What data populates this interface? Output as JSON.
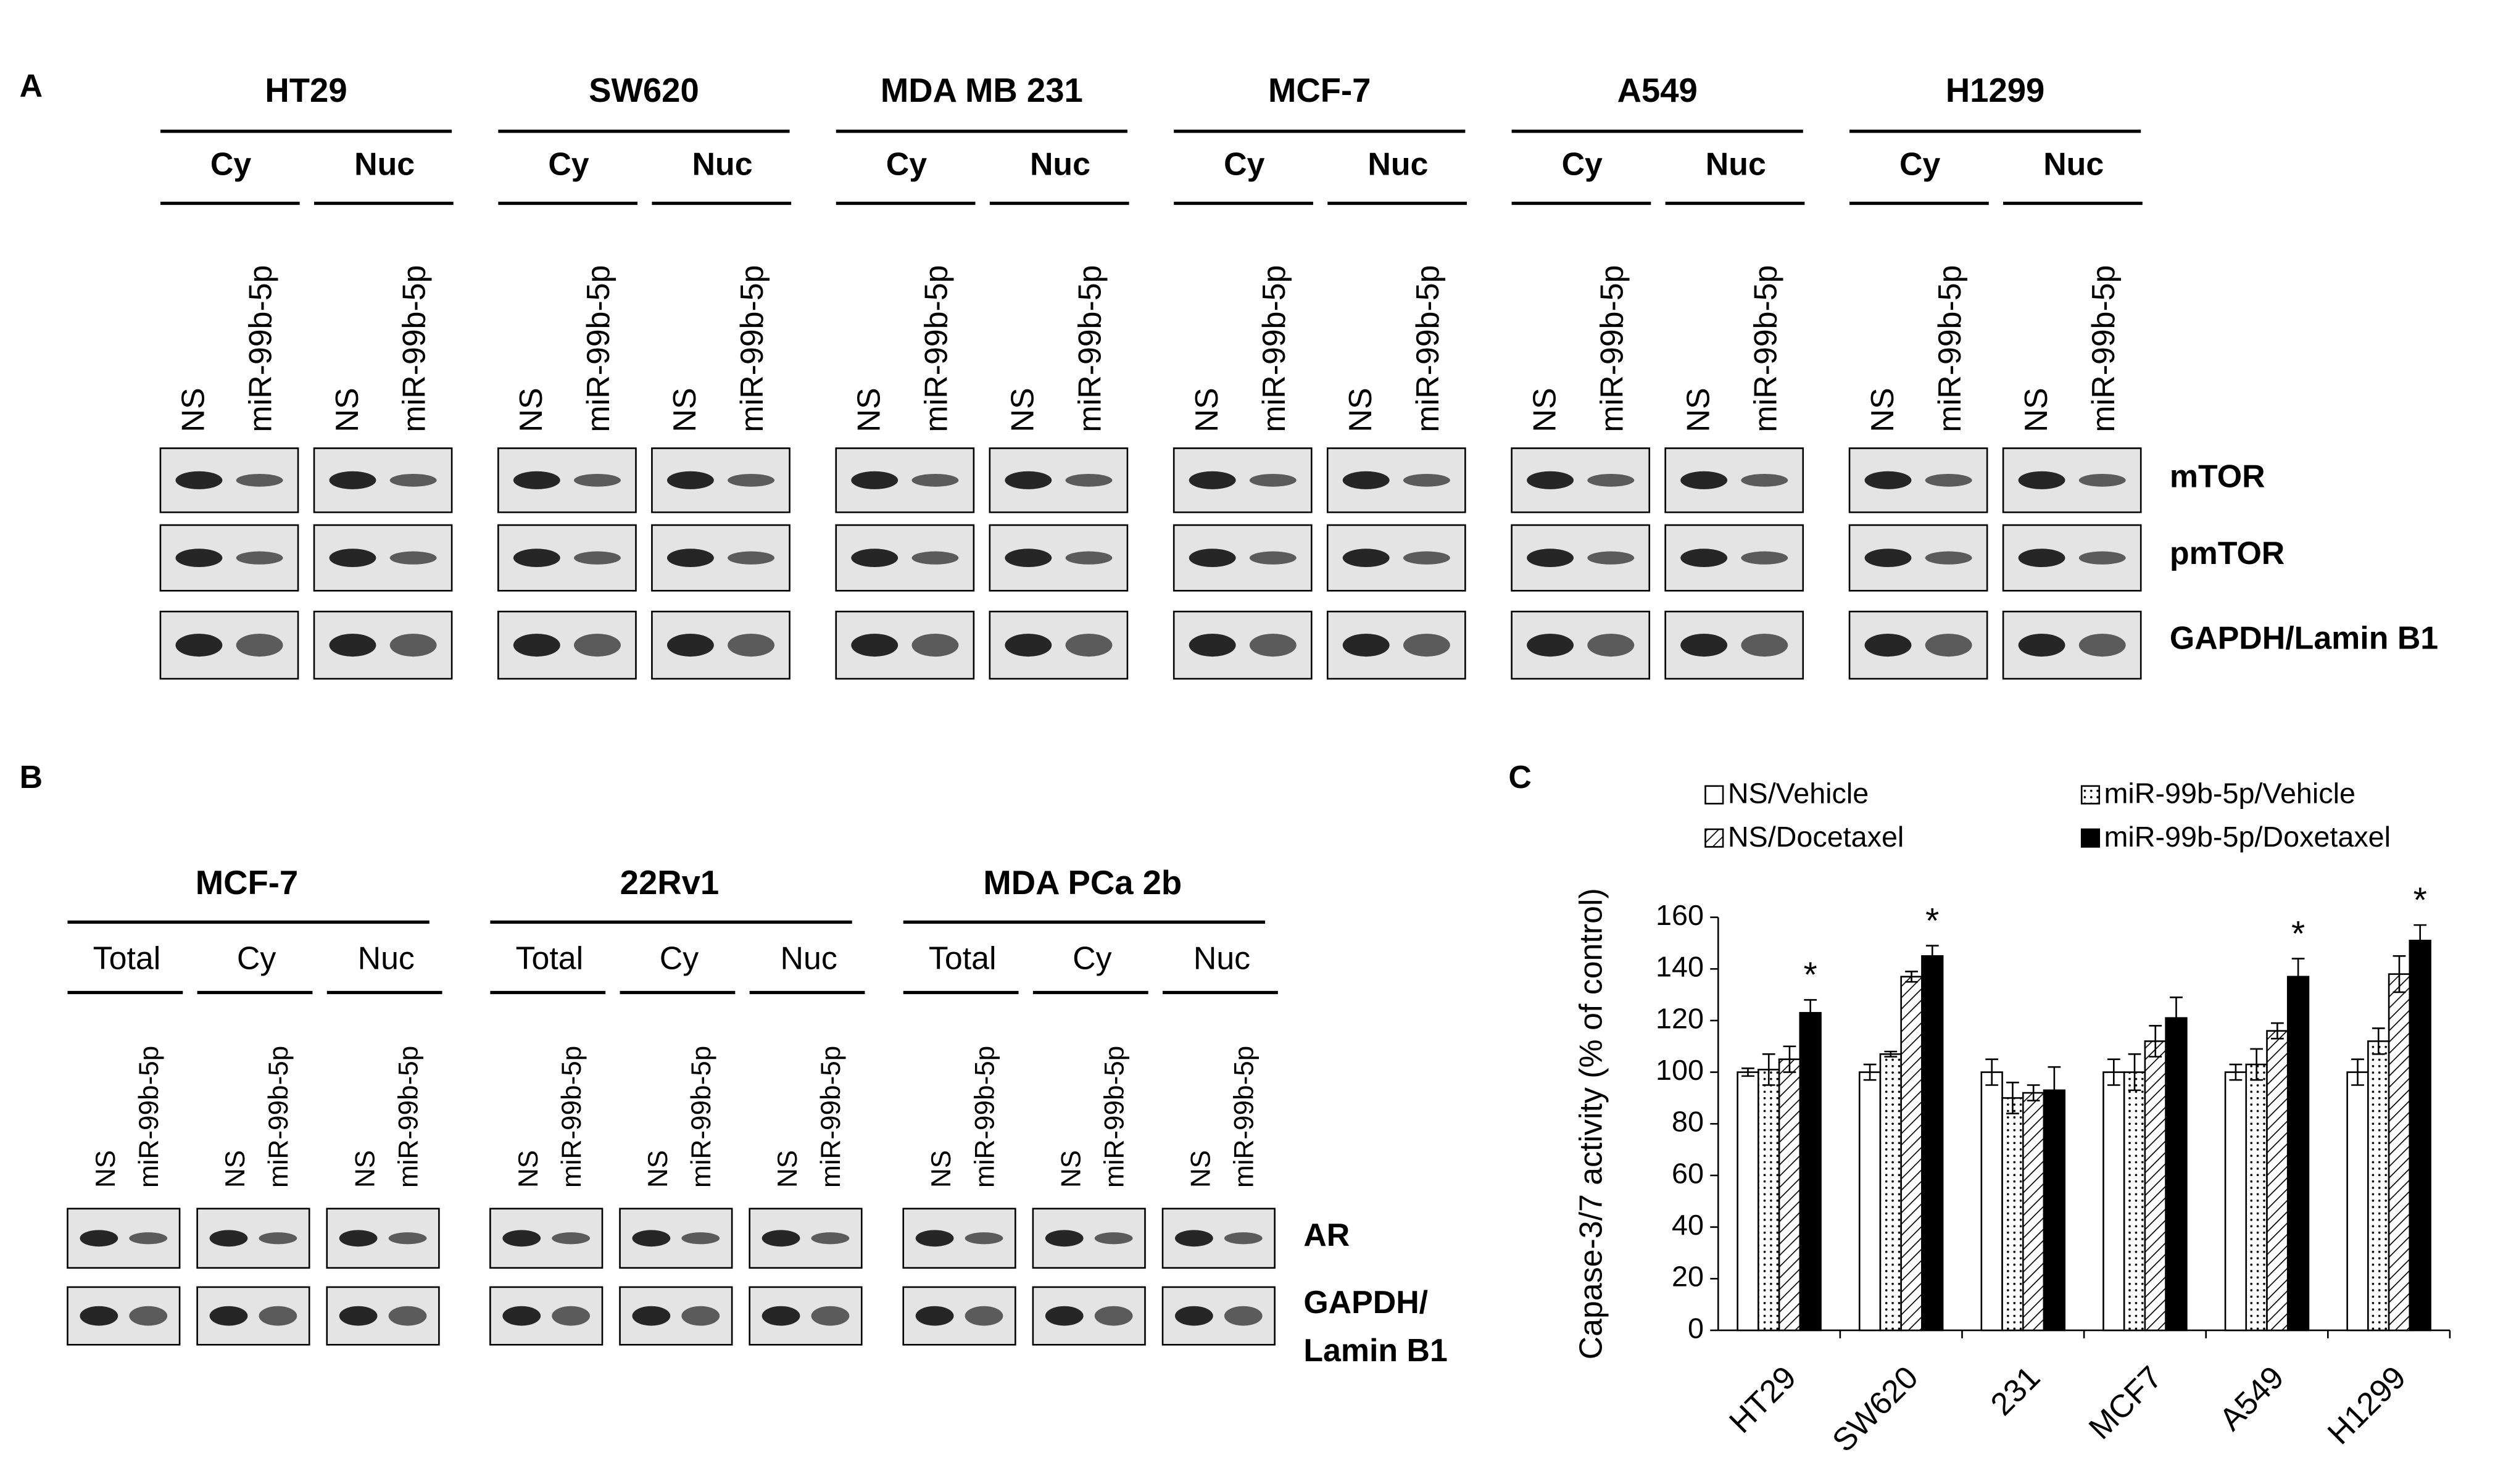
{
  "panel_a": {
    "label": "A",
    "cell_lines": [
      "HT29",
      "SW620",
      "MDA MB 231",
      "MCF-7",
      "A549",
      "H1299"
    ],
    "fractions": [
      "Cy",
      "Nuc"
    ],
    "lanes": [
      "NS",
      "miR-99b-5p"
    ],
    "proteins": [
      "mTOR",
      "pmTOR",
      "GAPDH/Lamin B1"
    ]
  },
  "panel_b": {
    "label": "B",
    "cell_lines": [
      "MCF-7",
      "22Rv1",
      "MDA PCa 2b"
    ],
    "fractions": [
      "Total",
      "Cy",
      "Nuc"
    ],
    "lanes": [
      "NS",
      "miR-99b-5p"
    ],
    "protein_labels": [
      [
        "AR"
      ],
      [
        "GAPDH/",
        "Lamin B1"
      ]
    ]
  },
  "chart_data": {
    "type": "bar",
    "panel_label": "C",
    "y_label": "Capase-3/7 activity (% of control)",
    "categories": [
      "HT29",
      "SW620",
      "231",
      "MCF7",
      "A549",
      "H1299"
    ],
    "series": [
      {
        "name": "NS/Vehicle",
        "color": "#ffffff",
        "pattern": "none",
        "values": [
          100,
          100,
          100,
          100,
          100,
          100
        ],
        "errors": [
          1.5,
          3,
          5,
          5,
          3,
          5
        ]
      },
      {
        "name": "miR-99b-5p/Vehicle",
        "color": "#ffffff",
        "pattern": "dots",
        "values": [
          101,
          107,
          90,
          100,
          103,
          112
        ],
        "errors": [
          6,
          1,
          6,
          7,
          6,
          5
        ]
      },
      {
        "name": "NS/Docetaxel",
        "color": "#ffffff",
        "pattern": "hatch",
        "values": [
          105,
          137,
          92,
          112,
          116,
          138
        ],
        "errors": [
          5,
          2,
          3,
          6,
          3,
          7
        ]
      },
      {
        "name": "miR-99b-5p/Doxetaxel",
        "color": "#000000",
        "pattern": "none",
        "values": [
          123,
          145,
          93,
          121,
          137,
          151
        ],
        "errors": [
          5,
          4,
          9,
          8,
          7,
          6
        ]
      }
    ],
    "annotations": [
      "*",
      "*",
      null,
      null,
      "*",
      "*"
    ],
    "ylim": [
      0,
      160
    ],
    "yticks": [
      0,
      20,
      40,
      60,
      80,
      100,
      120,
      140,
      160
    ],
    "grid": false
  }
}
